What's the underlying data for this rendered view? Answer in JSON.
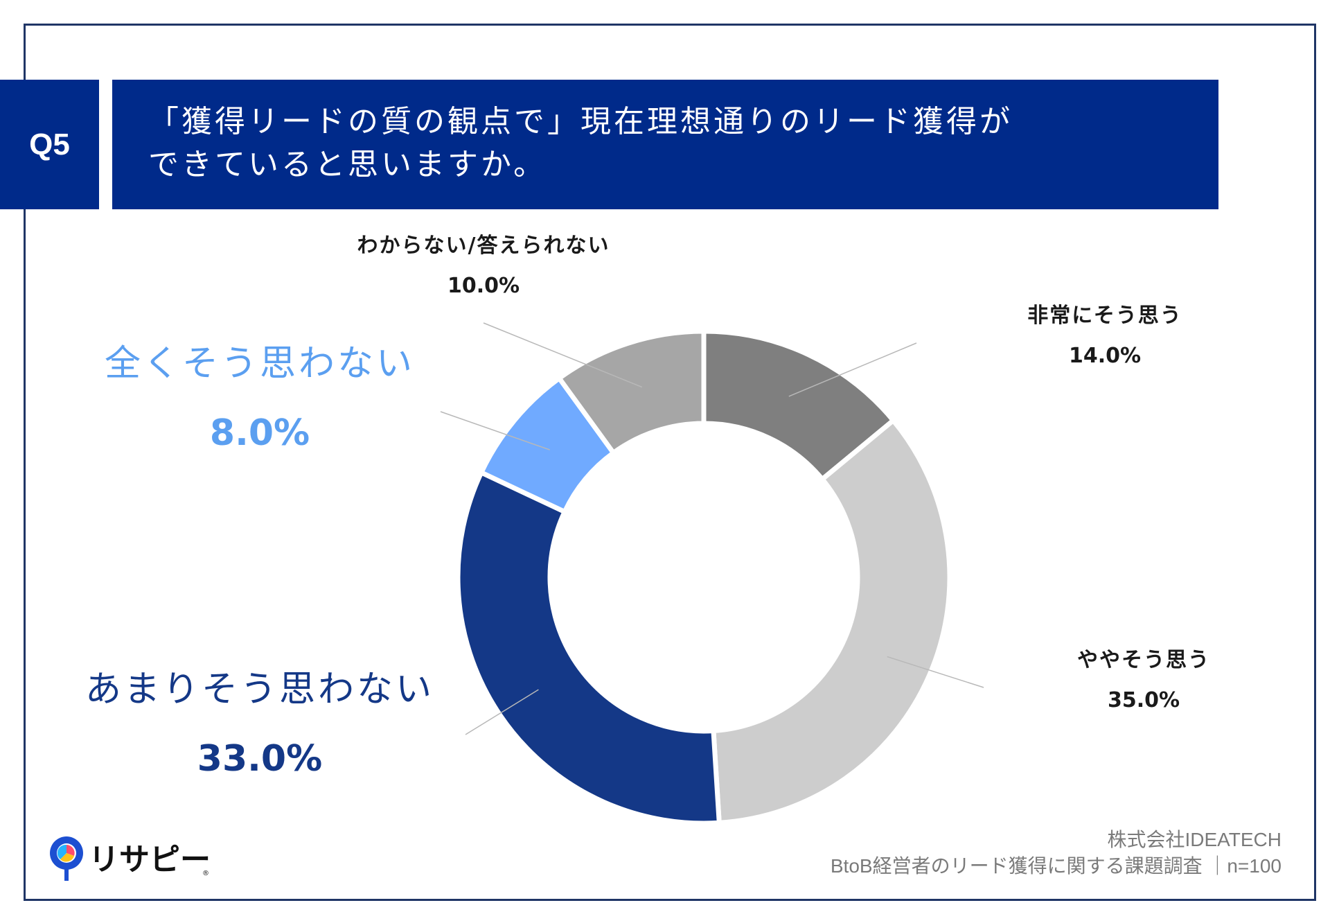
{
  "header": {
    "q_label": "Q5",
    "title_line1": "「獲得リードの質の観点で」現在理想通りのリード獲得が",
    "title_line2": "できていると思いますか。"
  },
  "chart_data": {
    "type": "pie",
    "donut": true,
    "categories": [
      "非常にそう思う",
      "ややそう思う",
      "あまりそう思わない",
      "全くそう思わない",
      "わからない/答えられない"
    ],
    "values": [
      14.0,
      35.0,
      33.0,
      8.0,
      10.0
    ],
    "value_labels": [
      "14.0%",
      "35.0%",
      "33.0%",
      "8.0%",
      "10.0%"
    ],
    "colors": [
      "#7f7f7f",
      "#cdcdcd",
      "#143887",
      "#70aaff",
      "#a6a6a6"
    ],
    "label_colors": [
      "#1a1a1a",
      "#1a1a1a",
      "#143887",
      "#5b9ff0",
      "#1a1a1a"
    ]
  },
  "logo": {
    "text": "リサピー",
    "mark": "®"
  },
  "footer": {
    "company": "株式会社IDEATECH",
    "survey": "BtoB経営者のリード獲得に関する課題調査 ｜n=100"
  }
}
